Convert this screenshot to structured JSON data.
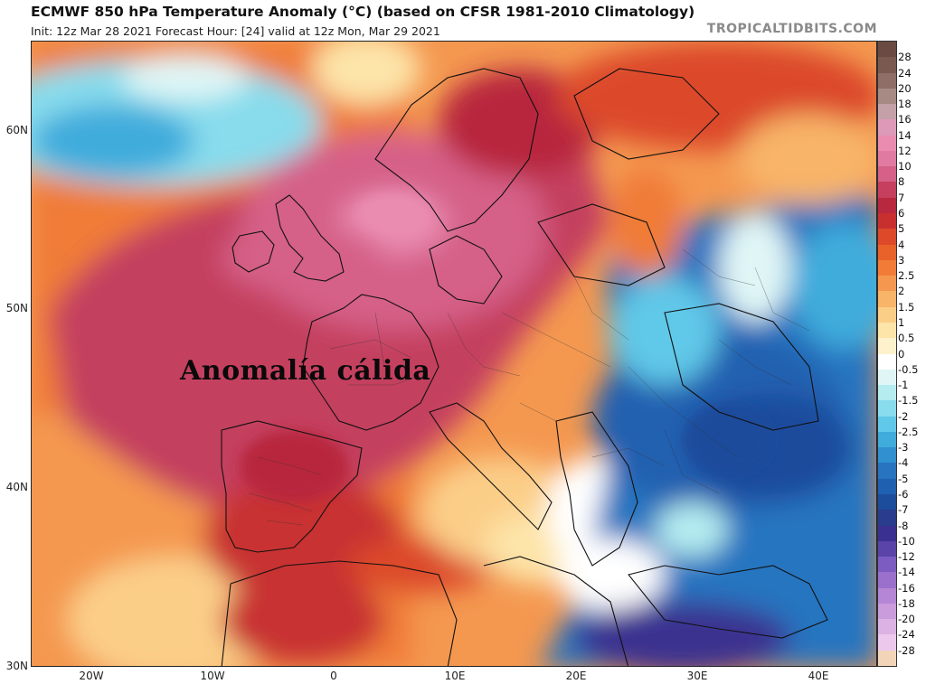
{
  "header": {
    "title": "ECMWF 850 hPa Temperature Anomaly (°C) (based on CFSR 1981-2010 Climatology)",
    "subtitle": "Init: 12z Mar 28 2021   Forecast Hour: [24]   valid at 12z Mon, Mar 29 2021",
    "brand": "TROPICALTIDBITS.COM"
  },
  "map": {
    "annotation": "Anomalía cálida",
    "lat_labels": [
      "60N",
      "50N",
      "40N",
      "30N"
    ],
    "lon_labels": [
      "20W",
      "10W",
      "0",
      "10E",
      "20E",
      "30E",
      "40E"
    ]
  },
  "colorbar": {
    "labels": [
      "28",
      "24",
      "20",
      "18",
      "16",
      "14",
      "12",
      "10",
      "8",
      "7",
      "6",
      "5",
      "4",
      "3",
      "2.5",
      "2",
      "1.5",
      "1",
      "0.5",
      "0",
      "-0.5",
      "-1",
      "-1.5",
      "-2",
      "-2.5",
      "-3",
      "-4",
      "-5",
      "-6",
      "-7",
      "-8",
      "-10",
      "-12",
      "-14",
      "-16",
      "-18",
      "-20",
      "-24",
      "-28"
    ],
    "colors": [
      "#7a5a50",
      "#8e6e66",
      "#a88a85",
      "#c4a0a8",
      "#dc9ab8",
      "#ea8cb0",
      "#e07aa0",
      "#d56088",
      "#c4405e",
      "#b8283e",
      "#c83030",
      "#dc4a2a",
      "#e8622a",
      "#f07c38",
      "#f49850",
      "#f8b468",
      "#fbce88",
      "#fde4a8",
      "#fef2cc",
      "#ffffff",
      "#e0f6f6",
      "#b4ecf0",
      "#88dcec",
      "#60c8e8",
      "#40acdc",
      "#3090d0",
      "#2874c0",
      "#2060b0",
      "#1c4c9c",
      "#2a3c8c",
      "#3a3090",
      "#5a44a8",
      "#7c5cc0",
      "#9a70cc",
      "#b486d4",
      "#ca9cdc",
      "#dcb2e4",
      "#ecc8ec",
      "#f2d4b8"
    ]
  }
}
